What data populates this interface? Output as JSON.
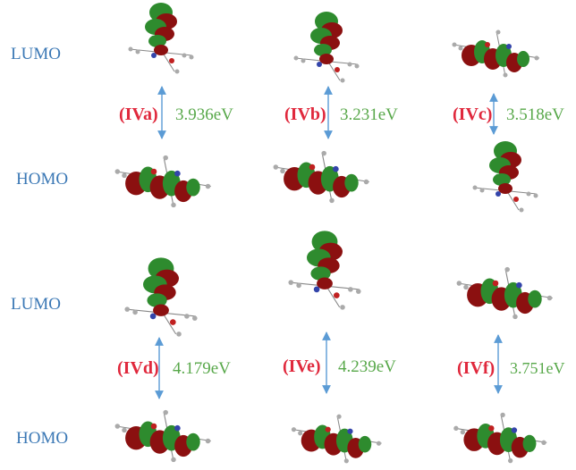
{
  "panels": [
    {
      "lumo_label": "LUMO",
      "homo_label": "HOMO",
      "compounds": [
        {
          "label": "(IVa)",
          "gap": "3.936eV"
        },
        {
          "label": "(IVb)",
          "gap": "3.231eV"
        },
        {
          "label": "(IVc)",
          "gap": "3.518eV"
        }
      ]
    },
    {
      "lumo_label": "LUMO",
      "homo_label": "HOMO",
      "compounds": [
        {
          "label": "(IVd)",
          "gap": "4.179eV"
        },
        {
          "label": "(IVe)",
          "gap": "4.239eV"
        },
        {
          "label": "(IVf)",
          "gap": "3.751eV"
        }
      ]
    }
  ]
}
